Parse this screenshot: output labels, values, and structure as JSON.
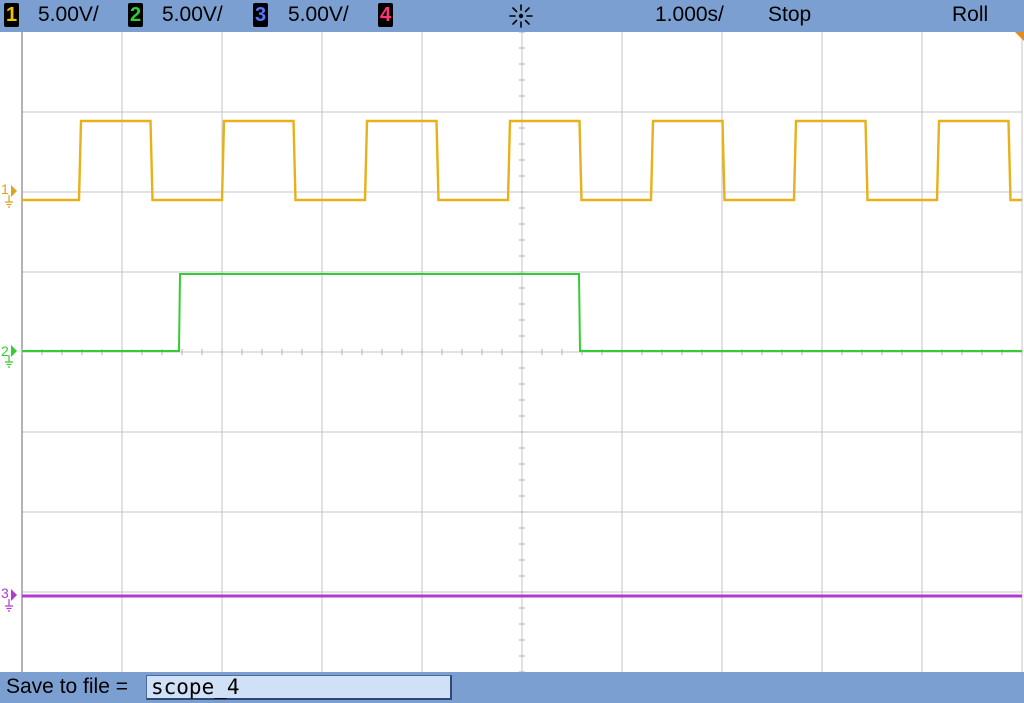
{
  "topbar": {
    "channels": [
      {
        "num": "1",
        "scale": "5.00V/",
        "color": "#f2c200"
      },
      {
        "num": "2",
        "scale": "5.00V/",
        "color": "#33cc33"
      },
      {
        "num": "3",
        "scale": "5.00V/",
        "color": "#5577ff"
      },
      {
        "num": "4",
        "color": "#ff3377"
      }
    ],
    "timebase": "1.000s/",
    "run_state": "Stop",
    "mode": "Roll",
    "trigger_icon": "sunburst-trigger-icon"
  },
  "markers": [
    {
      "label": "1",
      "color": "#e0a21a"
    },
    {
      "label": "2",
      "color": "#33cc33"
    },
    {
      "label": "3",
      "color": "#b23ad0"
    }
  ],
  "waveforms": {
    "ch1": {
      "type": "square",
      "period_s": 1.43,
      "duty": 0.5,
      "color": "#e8b019"
    },
    "ch2": {
      "type": "pulse",
      "high_from_s": -3.43,
      "high_to_s": 0.57,
      "color": "#33cc33"
    },
    "ch3": {
      "type": "dc",
      "color": "#b23ad0"
    }
  },
  "bottombar": {
    "save_label": "Save to file =",
    "filename": "scope_4"
  }
}
